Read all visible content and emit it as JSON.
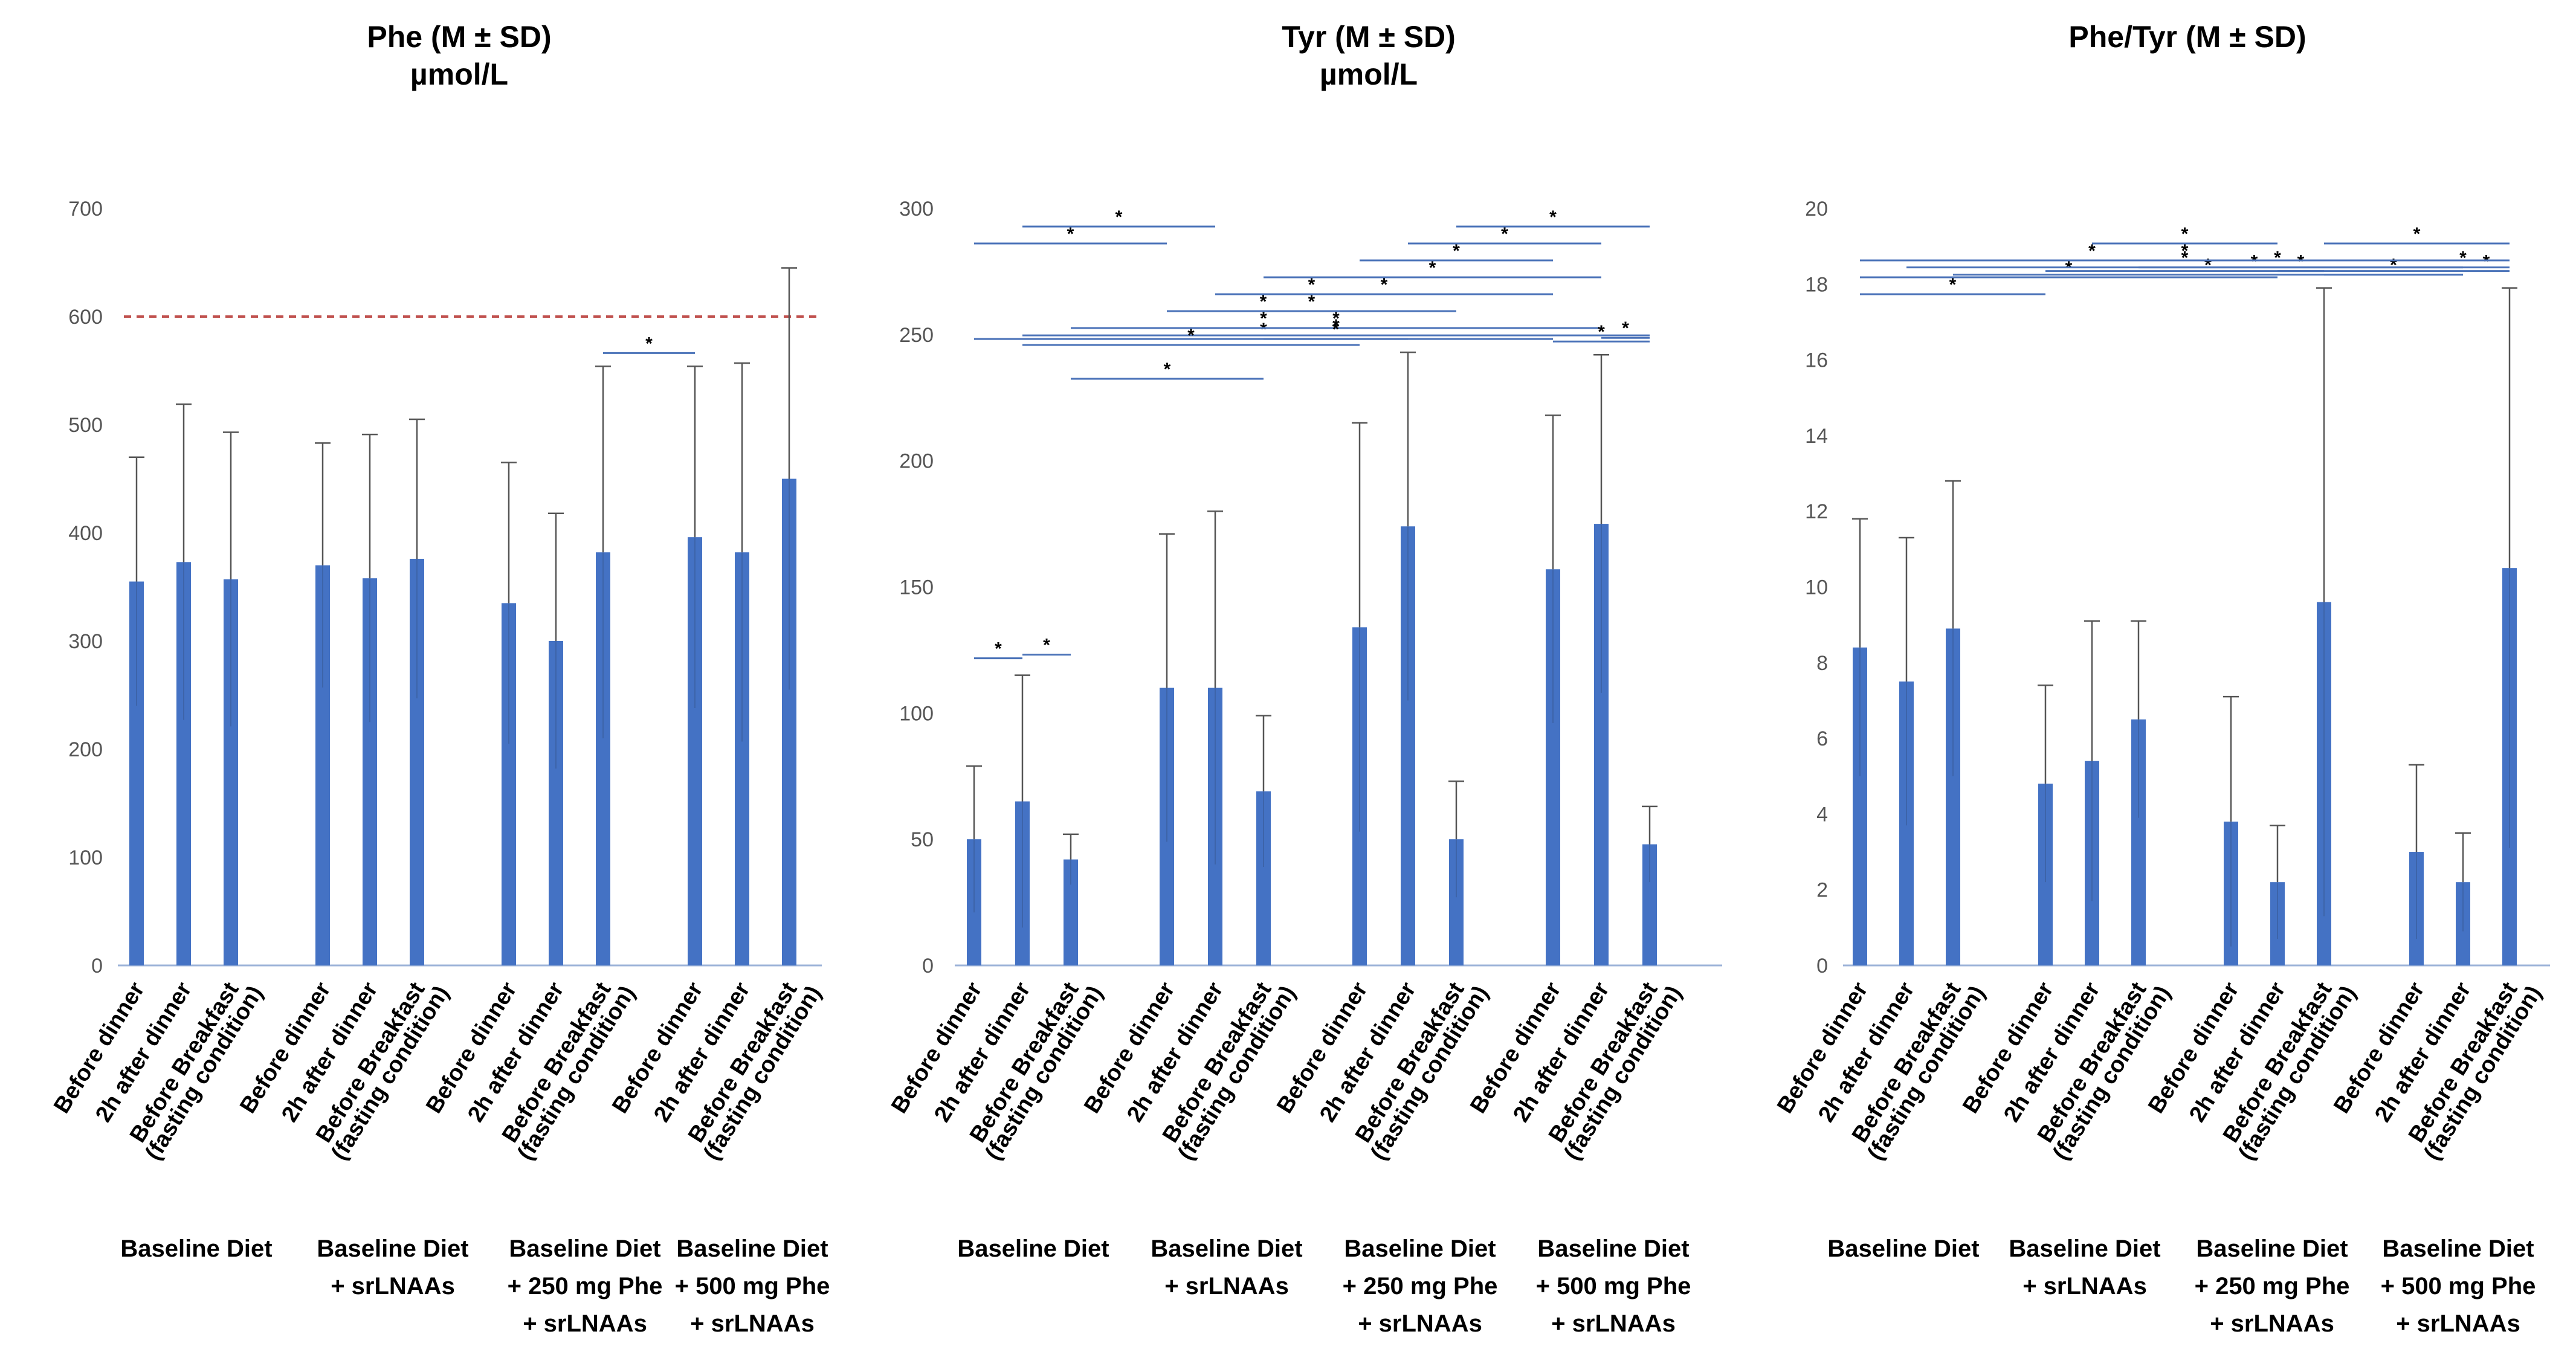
{
  "colors": {
    "bar": "#4472C4",
    "bracket": "#4A72B8",
    "threshold": "#C0504D",
    "axis": "#9DB3D8",
    "errorbar": "#555555"
  },
  "categories": [
    "Before dinner",
    "2h after dinner",
    "Before Breakfast",
    "(fasting condition)"
  ],
  "groups": [
    [
      "Baseline Diet"
    ],
    [
      "Baseline Diet",
      "+ srLNAAs"
    ],
    [
      "Baseline Diet",
      "+ 250 mg Phe",
      "+ srLNAAs"
    ],
    [
      "Baseline Diet",
      "+ 500 mg Phe",
      "+ srLNAAs"
    ]
  ],
  "significance_symbol": "*",
  "chart_data": [
    {
      "type": "bar",
      "title": [
        "Phe (M ± SD)",
        "µmol/L"
      ],
      "ylim": [
        0,
        700
      ],
      "yticks": [
        0,
        100,
        200,
        300,
        400,
        500,
        600,
        700
      ],
      "grid": false,
      "threshold": 600,
      "values": [
        355,
        373,
        357,
        370,
        358,
        376,
        335,
        300,
        382,
        396,
        382,
        450
      ],
      "sd": [
        115,
        146,
        136,
        113,
        133,
        129,
        130,
        118,
        172,
        158,
        175,
        195
      ],
      "brackets": [
        [
          8,
          9
        ]
      ]
    },
    {
      "type": "bar",
      "title": [
        "Tyr (M ± SD)",
        "µmol/L"
      ],
      "ylim": [
        0,
        300
      ],
      "yticks": [
        0,
        50,
        100,
        150,
        200,
        250,
        300
      ],
      "grid": false,
      "values": [
        50,
        65,
        42,
        110,
        110,
        69,
        134,
        174,
        50,
        157,
        175,
        48
      ],
      "sd": [
        29,
        50,
        10,
        61,
        70,
        30,
        81,
        69,
        23,
        61,
        67,
        15
      ],
      "brackets": [
        [
          0,
          3
        ],
        [
          1,
          4
        ],
        [
          2,
          5
        ],
        [
          0,
          9
        ],
        [
          1,
          11
        ],
        [
          2,
          10
        ],
        [
          3,
          8
        ],
        [
          4,
          9
        ],
        [
          5,
          10
        ],
        [
          6,
          9
        ],
        [
          7,
          10
        ],
        [
          8,
          11
        ],
        [
          9,
          11
        ],
        [
          10,
          11
        ],
        [
          1,
          6
        ],
        [
          2,
          8
        ],
        [
          3,
          6
        ],
        [
          4,
          7
        ],
        [
          5,
          7
        ],
        [
          0,
          1
        ],
        [
          1,
          2
        ]
      ]
    },
    {
      "type": "bar",
      "title": [
        "Phe/Tyr (M ± SD)"
      ],
      "ylim": [
        0,
        20
      ],
      "yticks": [
        0,
        2,
        4,
        6,
        8,
        10,
        12,
        14,
        16,
        18,
        20
      ],
      "grid": false,
      "values": [
        8.4,
        7.5,
        8.9,
        4.8,
        5.4,
        6.5,
        3.8,
        2.2,
        9.6,
        3.0,
        2.2,
        10.5
      ],
      "sd": [
        3.4,
        3.8,
        3.9,
        2.6,
        3.7,
        2.6,
        3.3,
        1.5,
        8.3,
        2.3,
        1.3,
        7.4
      ],
      "brackets": [
        [
          0,
          3
        ],
        [
          0,
          7
        ],
        [
          1,
          7
        ],
        [
          4,
          7
        ],
        [
          7,
          8
        ],
        [
          1,
          10
        ],
        [
          2,
          10
        ],
        [
          3,
          10
        ],
        [
          5,
          9
        ],
        [
          8,
          10
        ],
        [
          10,
          11
        ],
        [
          9,
          11
        ],
        [
          0,
          11
        ],
        [
          8,
          11
        ]
      ]
    }
  ]
}
